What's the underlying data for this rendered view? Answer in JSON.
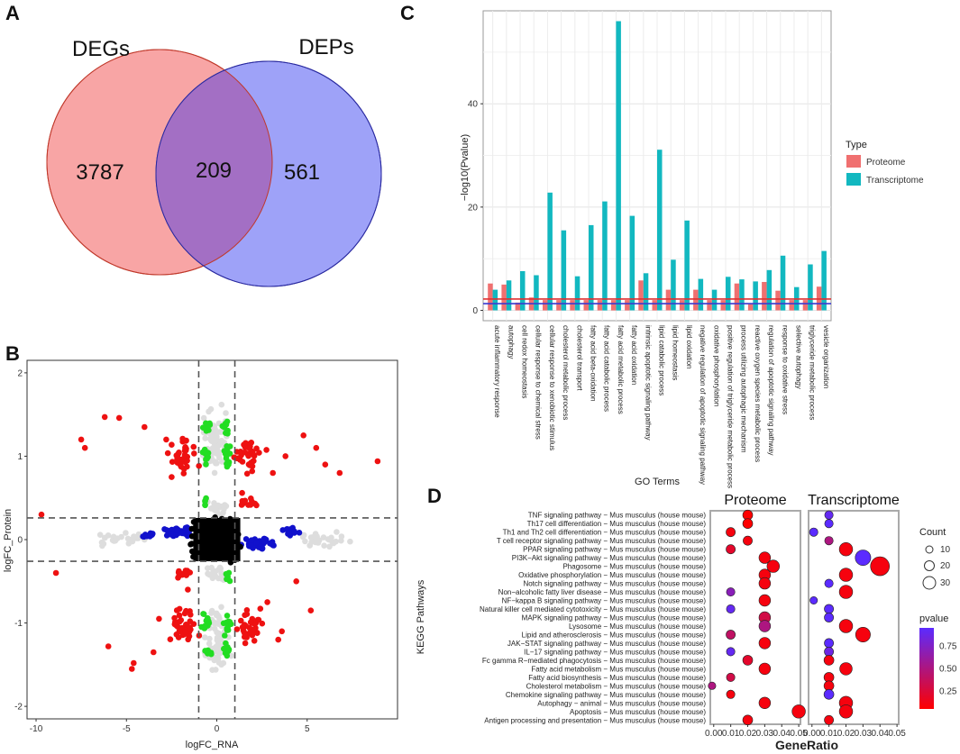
{
  "panel_labels": {
    "a": "A",
    "b": "B",
    "c": "C",
    "d": "D"
  },
  "chart_data": [
    {
      "panel": "A",
      "type": "venn",
      "sets": [
        {
          "name": "DEGs",
          "color": "#F8A5A5",
          "edge": "#C0392B"
        },
        {
          "name": "DEPs",
          "color": "#9EA2F8",
          "edge": "#2A2AA0"
        }
      ],
      "regions": {
        "only_a": "3787",
        "both": "209",
        "only_b": "561"
      },
      "overlap_color": "#A36FC4"
    },
    {
      "panel": "B",
      "type": "scatter",
      "xlabel": "logFC_RNA",
      "ylabel": "logFC_Protein",
      "xlim": [
        -10.5,
        10
      ],
      "ylim": [
        -2.15,
        2.15
      ],
      "xticks": [
        "-10",
        "-5",
        "0",
        "5"
      ],
      "xtick_values": [
        -10,
        -5,
        0,
        5
      ],
      "yticks": [
        "-2",
        "-1",
        "0",
        "1",
        "2"
      ],
      "ytick_values": [
        -2,
        -1,
        0,
        1,
        2
      ],
      "vlines": [
        -1,
        1
      ],
      "hlines": [
        -0.26,
        0.26
      ],
      "colors": {
        "grey": "#DDDDDD",
        "green": "#22DD22",
        "red": "#EE1111",
        "blue": "#1111CC",
        "black": "#000000"
      },
      "red_points": [
        [
          -9.7,
          0.3
        ],
        [
          -8.9,
          -0.4
        ],
        [
          -7.3,
          1.1
        ],
        [
          -7.5,
          1.2
        ],
        [
          -6.2,
          1.47
        ],
        [
          -5.4,
          1.46
        ],
        [
          -4.7,
          -1.55
        ],
        [
          -4.6,
          -1.48
        ],
        [
          -6,
          -1.28
        ],
        [
          -4,
          1.35
        ],
        [
          5.5,
          1.1
        ],
        [
          4.8,
          1.25
        ],
        [
          6,
          0.9
        ],
        [
          5.2,
          -0.85
        ],
        [
          4.4,
          -0.5
        ],
        [
          8.9,
          0.94
        ],
        [
          3.4,
          -1.2
        ],
        [
          3.8,
          1.0
        ],
        [
          3.1,
          0.8
        ],
        [
          -3.5,
          -1.35
        ],
        [
          -3.2,
          -0.95
        ],
        [
          -2.8,
          1.2
        ],
        [
          3.6,
          -1.1
        ],
        [
          6.8,
          0.8
        ],
        [
          -2.5,
          0.75
        ],
        [
          2.8,
          -0.75
        ],
        [
          -1.6,
          -0.6
        ],
        [
          1.4,
          0.56
        ]
      ],
      "red_clusters": [
        [
          -1.8,
          1.0,
          1.0,
          0.28,
          36
        ],
        [
          1.8,
          1.0,
          1.0,
          0.28,
          36
        ],
        [
          -1.8,
          -1.05,
          1.0,
          0.3,
          36
        ],
        [
          1.8,
          -1.05,
          1.0,
          0.3,
          36
        ],
        [
          -2.0,
          -0.4,
          0.8,
          0.08,
          10
        ],
        [
          2.0,
          0.45,
          0.8,
          0.08,
          10
        ]
      ],
      "green_clusters": [
        [
          -0.5,
          1.35,
          0.3,
          0.12,
          8
        ],
        [
          0.5,
          1.35,
          0.3,
          0.12,
          8
        ],
        [
          -0.6,
          1.0,
          0.3,
          0.18,
          14
        ],
        [
          0.6,
          1.0,
          0.3,
          0.18,
          14
        ],
        [
          -0.6,
          -1.0,
          0.3,
          0.2,
          14
        ],
        [
          0.6,
          -1.0,
          0.3,
          0.2,
          14
        ],
        [
          -0.5,
          -1.35,
          0.3,
          0.12,
          8
        ],
        [
          0.5,
          -1.35,
          0.3,
          0.12,
          8
        ],
        [
          -0.6,
          0.45,
          0.2,
          0.1,
          5
        ],
        [
          0.6,
          -0.45,
          0.2,
          0.1,
          5
        ]
      ],
      "blue_clusters": [
        [
          -2.2,
          0.1,
          1.0,
          0.09,
          40
        ],
        [
          2.4,
          -0.05,
          1.2,
          0.1,
          50
        ],
        [
          4.0,
          0.1,
          0.9,
          0.08,
          16
        ],
        [
          -3.8,
          0.05,
          0.7,
          0.06,
          10
        ]
      ],
      "grey_clusters": [
        [
          0,
          1.2,
          1.0,
          0.5,
          70
        ],
        [
          0,
          -1.2,
          1.0,
          0.5,
          70
        ],
        [
          -5.0,
          0.0,
          1.8,
          0.12,
          30
        ],
        [
          6.0,
          0.0,
          1.8,
          0.12,
          30
        ],
        [
          0,
          0.4,
          0.7,
          0.15,
          20
        ],
        [
          0,
          -0.4,
          0.7,
          0.15,
          20
        ]
      ]
    },
    {
      "panel": "C",
      "type": "bar",
      "xlabel": "GO Terms",
      "ylabel": "−log10(Pvalue)",
      "ylim": [
        -2,
        58
      ],
      "yticks": [
        "0",
        "20",
        "40"
      ],
      "ytick_values": [
        0,
        20,
        40
      ],
      "hlines": [
        {
          "value": 1.3,
          "color": "#3A3AD0"
        },
        {
          "value": 2.2,
          "color": "#E03030"
        }
      ],
      "legend_title": "Type",
      "legend_position": "right",
      "categories": [
        "acute inflammatory response",
        "autophagy",
        "cell redox homeostasis",
        "cellular response to chemical stress",
        "cellular response to xenobiotic stimulus",
        "cholesterol metabolic process",
        "cholesterol transport",
        "fatty acid beta-oxidation",
        "fatty acid catabolic process",
        "fatty acid metabolic process",
        "fatty acid oxidation",
        "intrinsic apoptotic signaling pathway",
        "lipid catabolic process",
        "lipid homeostasis",
        "lipid oxidation",
        "negative regulation of apoptotic signaling pathway",
        "oxidative phosphorylation",
        "positive regulation of triglyceride metabolic process",
        "process utilizing autophagic mechanism",
        "reactive oxygen species metabolic process",
        "regulation of apoptotic signaling pathway",
        "response to oxidative stress",
        "selective autophagy",
        "triglyceride metabolic process",
        "vesicle organization"
      ],
      "series": [
        {
          "name": "Proteome",
          "color": "#F07070",
          "values": [
            5.2,
            5.0,
            1.5,
            2.5,
            2.0,
            2.0,
            2.0,
            2.0,
            2.0,
            2.0,
            2.0,
            5.8,
            2.0,
            4.0,
            2.0,
            4.0,
            2.0,
            2.0,
            5.2,
            1.2,
            5.5,
            3.8,
            2.0,
            2.0,
            4.6
          ]
        },
        {
          "name": "Transcriptome",
          "color": "#12B8C0",
          "values": [
            4.0,
            5.8,
            7.6,
            6.8,
            22.8,
            15.5,
            6.6,
            16.5,
            21.1,
            56.0,
            18.3,
            7.2,
            31.1,
            9.8,
            17.4,
            6.1,
            4.0,
            6.5,
            6.0,
            5.6,
            7.8,
            10.6,
            4.5,
            8.9,
            11.5
          ]
        }
      ]
    },
    {
      "panel": "D",
      "type": "scatter",
      "subtype": "bubble",
      "xlabel": "GeneRatio",
      "ylabel": "KEGG Pathways",
      "facets": [
        "Proteome",
        "Transcriptome"
      ],
      "facet_xlim": [
        [
          -0.002,
          0.051
        ],
        [
          -0.002,
          0.051
        ]
      ],
      "xticks": [
        "0.00",
        "0.01",
        "0.02",
        "0.03",
        "0.04",
        "0.05"
      ],
      "xtick_values": [
        0,
        0.01,
        0.02,
        0.03,
        0.04,
        0.05
      ],
      "size_legend": {
        "title": "Count",
        "values": [
          "10",
          "20",
          "30"
        ]
      },
      "color_legend": {
        "title": "pvalue",
        "labels": [
          "0.75",
          "0.50",
          "0.25"
        ],
        "label_values": [
          0.75,
          0.5,
          0.25
        ],
        "range": [
          0.05,
          0.95
        ],
        "low_color": "#FF0000",
        "high_color": "#5B2BFF"
      },
      "pathways": [
        "TNF signaling pathway − Mus musculus (house mouse)",
        "Th17 cell differentiation − Mus musculus (house mouse)",
        "Th1 and Th2 cell differentiation − Mus musculus (house mouse)",
        "T cell receptor signaling pathway − Mus musculus (house mouse)",
        "PPAR signaling pathway − Mus musculus (house mouse)",
        "PI3K−Akt signaling pathway − Mus musculus (house mouse)",
        "Phagosome − Mus musculus (house mouse)",
        "Oxidative phosphorylation − Mus musculus (house mouse)",
        "Notch signaling pathway − Mus musculus (house mouse)",
        "Non−alcoholic fatty liver disease − Mus musculus (house mouse)",
        "NF−kappa B signaling pathway − Mus musculus (house mouse)",
        "Natural killer cell mediated cytotoxicity − Mus musculus (house mouse)",
        "MAPK signaling pathway − Mus musculus (house mouse)",
        "Lysosome − Mus musculus (house mouse)",
        "Lipid and atherosclerosis − Mus musculus (house mouse)",
        "JAK−STAT signaling pathway − Mus musculus (house mouse)",
        "IL−17 signaling pathway − Mus musculus (house mouse)",
        "Fc gamma R−mediated phagocytosis − Mus musculus (house mouse)",
        "Fatty acid metabolism − Mus musculus (house mouse)",
        "Fatty acid biosynthesis − Mus musculus (house mouse)",
        "Cholesterol metabolism − Mus musculus (house mouse)",
        "Chemokine signaling pathway − Mus musculus (house mouse)",
        "Autophagy − animal − Mus musculus (house mouse)",
        "Apoptosis − Mus musculus (house mouse)",
        "Antigen processing and presentation − Mus musculus (house mouse)"
      ],
      "proteome_points": [
        [
          0,
          0.02,
          5,
          0.05
        ],
        [
          1,
          0.02,
          5,
          0.05
        ],
        [
          2,
          0.01,
          4,
          0.1
        ],
        [
          3,
          0.02,
          4,
          0.1
        ],
        [
          4,
          0.01,
          4,
          0.2
        ],
        [
          5,
          0.03,
          8,
          0.1
        ],
        [
          6,
          0.035,
          10,
          0.1
        ],
        [
          7,
          0.03,
          8,
          0.1
        ],
        [
          8,
          0.03,
          8,
          0.1
        ],
        [
          9,
          0.01,
          3,
          0.7
        ],
        [
          10,
          0.03,
          8,
          0.1
        ],
        [
          11,
          0.01,
          3,
          0.9
        ],
        [
          12,
          0.03,
          8,
          0.3
        ],
        [
          13,
          0.03,
          8,
          0.5
        ],
        [
          14,
          0.01,
          4,
          0.4
        ],
        [
          15,
          0.03,
          8,
          0.1
        ],
        [
          16,
          0.01,
          3,
          0.9
        ],
        [
          17,
          0.02,
          5,
          0.2
        ],
        [
          18,
          0.03,
          8,
          0.1
        ],
        [
          19,
          0.01,
          3,
          0.3
        ],
        [
          20,
          -0.001,
          2,
          0.5
        ],
        [
          21,
          0.01,
          3,
          0.1
        ],
        [
          22,
          0.03,
          8,
          0.1
        ],
        [
          23,
          0.05,
          12,
          0.1
        ],
        [
          24,
          0.02,
          5,
          0.1
        ]
      ],
      "transcriptome_points": [
        [
          0,
          0.01,
          3,
          0.9
        ],
        [
          1,
          0.01,
          3,
          0.95
        ],
        [
          2,
          0.001,
          3,
          0.95
        ],
        [
          3,
          0.01,
          3,
          0.5
        ],
        [
          4,
          0.02,
          12,
          0.1
        ],
        [
          5,
          0.03,
          18,
          0.95
        ],
        [
          6,
          0.04,
          30,
          0.1
        ],
        [
          7,
          0.02,
          12,
          0.1
        ],
        [
          8,
          0.01,
          3,
          0.95
        ],
        [
          9,
          0.02,
          12,
          0.1
        ],
        [
          10,
          0.001,
          2,
          0.95
        ],
        [
          11,
          0.01,
          4,
          0.95
        ],
        [
          12,
          0.01,
          4,
          0.95
        ],
        [
          13,
          0.02,
          12,
          0.1
        ],
        [
          14,
          0.03,
          16,
          0.1
        ],
        [
          15,
          0.01,
          4,
          0.95
        ],
        [
          16,
          0.01,
          4,
          0.85
        ],
        [
          17,
          0.01,
          5,
          0.1
        ],
        [
          18,
          0.02,
          10,
          0.1
        ],
        [
          19,
          0.01,
          5,
          0.1
        ],
        [
          20,
          0.01,
          5,
          0.1
        ],
        [
          21,
          0.01,
          5,
          0.95
        ],
        [
          22,
          0.02,
          12,
          0.1
        ],
        [
          23,
          0.02,
          12,
          0.1
        ],
        [
          24,
          0.01,
          4,
          0.1
        ]
      ]
    }
  ]
}
